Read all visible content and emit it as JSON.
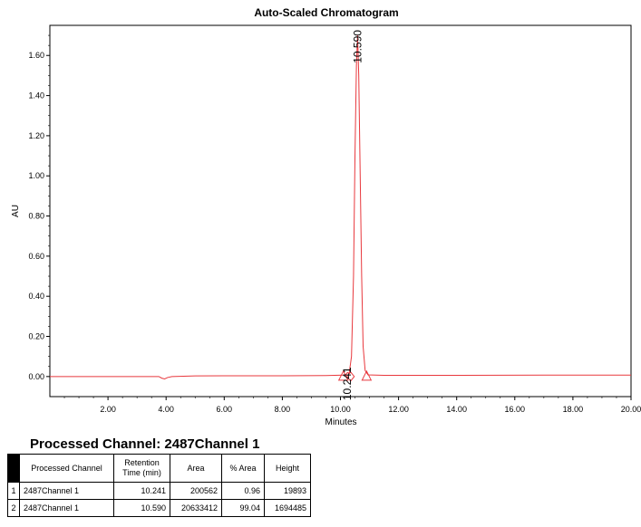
{
  "chart_data": {
    "type": "line",
    "title": "Auto-Scaled Chromatogram",
    "xlabel": "Minutes",
    "ylabel": "AU",
    "xlim": [
      0,
      20
    ],
    "ylim": [
      -0.1,
      1.75
    ],
    "x_ticks": [
      2,
      4,
      6,
      8,
      10,
      12,
      14,
      16,
      18,
      20
    ],
    "x_tick_labels": [
      "2.00",
      "4.00",
      "6.00",
      "8.00",
      "10.00",
      "12.00",
      "14.00",
      "16.00",
      "18.00",
      "20.00"
    ],
    "y_ticks": [
      0,
      0.2,
      0.4,
      0.6,
      0.8,
      1.0,
      1.2,
      1.4,
      1.6
    ],
    "y_tick_labels": [
      "0.00",
      "0.20",
      "0.40",
      "0.60",
      "0.80",
      "1.00",
      "1.20",
      "1.40",
      "1.60"
    ],
    "series": [
      {
        "color": "#e8383d",
        "x": [
          0,
          3.6,
          3.75,
          3.85,
          3.95,
          4.05,
          4.2,
          5,
          6,
          8,
          9.5,
          10.1,
          10.2,
          10.241,
          10.3,
          10.38,
          10.45,
          10.5,
          10.55,
          10.59,
          10.63,
          10.68,
          10.73,
          10.78,
          10.85,
          10.95,
          11.5,
          14,
          17,
          20
        ],
        "y": [
          0.0,
          0.0,
          0.0,
          -0.008,
          -0.012,
          -0.005,
          0.0,
          0.003,
          0.004,
          0.004,
          0.005,
          0.007,
          0.012,
          0.02,
          0.016,
          0.1,
          0.5,
          1.1,
          1.55,
          1.7,
          1.5,
          1.0,
          0.5,
          0.15,
          0.03,
          0.008,
          0.006,
          0.006,
          0.007,
          0.007
        ]
      }
    ],
    "peaks": [
      {
        "label": "10.241",
        "rt": 10.241,
        "apex": 0.02
      },
      {
        "label": "10.590",
        "rt": 10.59,
        "apex": 1.7
      }
    ],
    "markers": [
      {
        "shape": "triangle",
        "x": 10.1,
        "y": 0.0
      },
      {
        "shape": "triangle",
        "x": 10.9,
        "y": 0.0
      },
      {
        "shape": "diamond",
        "x": 10.35,
        "y": 0.0
      }
    ]
  },
  "results": {
    "title": "Processed Channel: 2487Channel 1",
    "headers": {
      "channel": "Processed Channel",
      "retention_line1": "Retention",
      "retention_line2": "Time (min)",
      "area": "Area",
      "pct_area": "% Area",
      "height": "Height"
    },
    "rows": [
      {
        "index": "1",
        "channel": "2487Channel 1",
        "retention": "10.241",
        "area": "200562",
        "pct_area": "0.96",
        "height": "19893"
      },
      {
        "index": "2",
        "channel": "2487Channel 1",
        "retention": "10.590",
        "area": "20633412",
        "pct_area": "99.04",
        "height": "1694485"
      }
    ]
  }
}
